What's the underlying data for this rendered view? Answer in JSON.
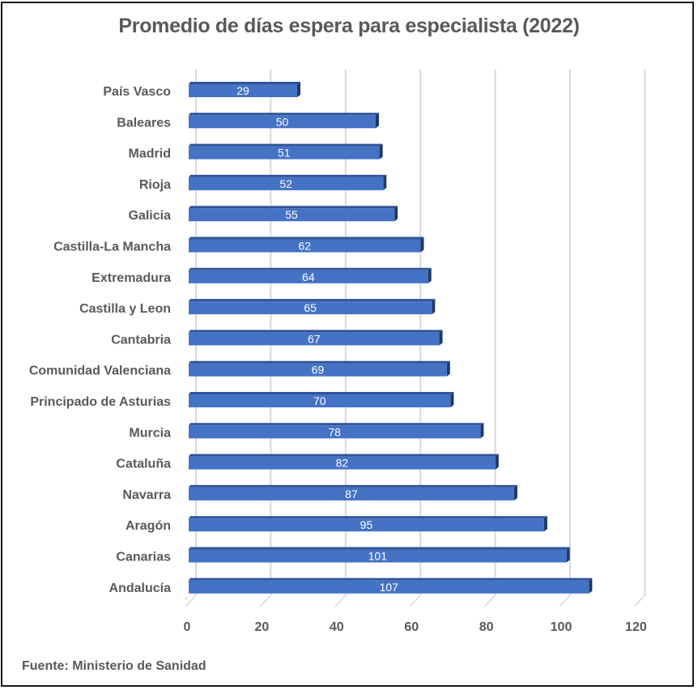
{
  "chart_data": {
    "type": "bar",
    "orientation": "horizontal",
    "style": "3d-clustered",
    "title": "Promedio de días espera para especialista (2022)",
    "xlabel": "",
    "ylabel": "",
    "categories": [
      "País Vasco",
      "Baleares",
      "Madrid",
      "Rioja",
      "Galicia",
      "Castilla-La Mancha",
      "Extremadura",
      "Castilla y Leon",
      "Cantabria",
      "Comunidad Valenciana",
      "Principado de Asturias",
      "Murcia",
      "Cataluña",
      "Navarra",
      "Aragón",
      "Canarias",
      "Andalucía"
    ],
    "values": [
      29,
      50,
      51,
      52,
      55,
      62,
      64,
      65,
      67,
      69,
      70,
      78,
      82,
      87,
      95,
      101,
      107
    ],
    "xlim": [
      0,
      120
    ],
    "xticks": [
      0,
      20,
      40,
      60,
      80,
      100,
      120
    ],
    "tick_labels": [
      "0",
      "20",
      "40",
      "60",
      "80",
      "100",
      "120"
    ],
    "grid": true,
    "data_labels": true,
    "legend": "none",
    "colors": {
      "bar_front": "#4472C4",
      "bar_top": "#2F5597",
      "bar_side": "#203864",
      "grid": "#D9D9D9",
      "text": "#595959"
    }
  },
  "source": "Fuente: Ministerio de Sanidad"
}
